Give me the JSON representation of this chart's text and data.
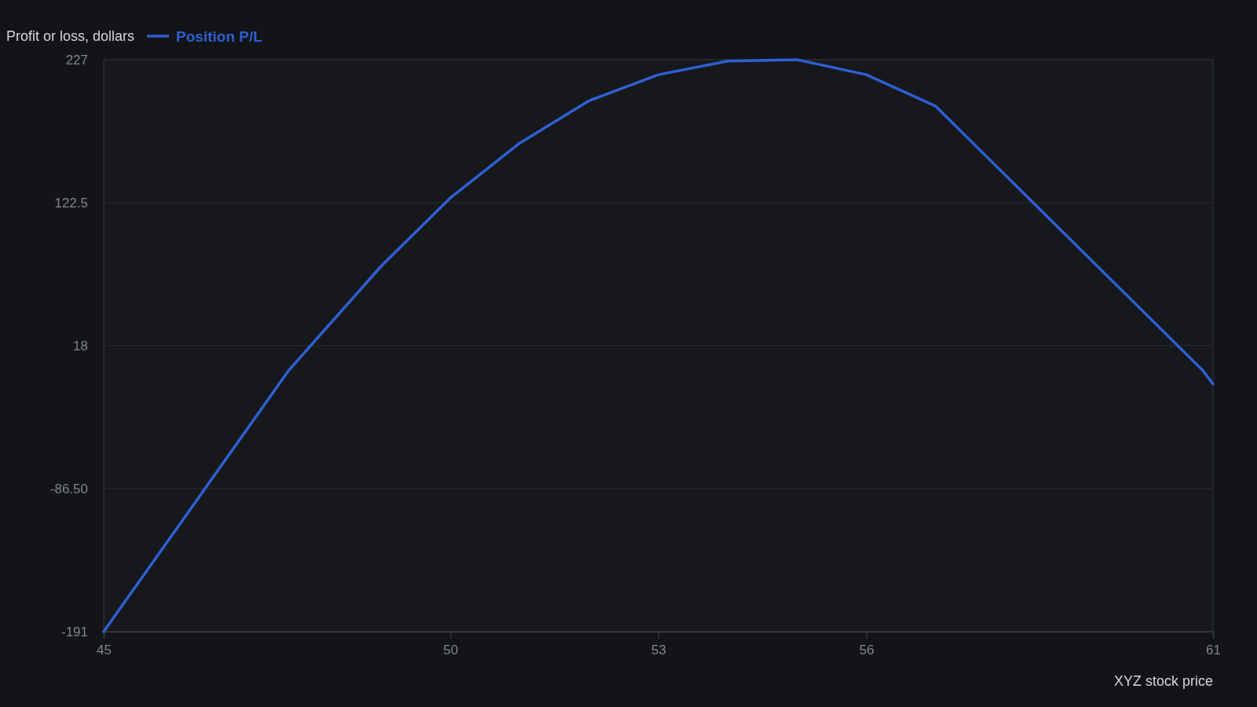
{
  "chart_data": {
    "type": "line",
    "ylabel": "Profit or loss, dollars",
    "xlabel": "XYZ stock price",
    "x": [
      45,
      47.67,
      49,
      50,
      51,
      52,
      53,
      54,
      55,
      56,
      57,
      60.85,
      61
    ],
    "series": [
      {
        "name": "Position P/L",
        "color": "#2f5fd3",
        "values": [
          -191,
          0,
          76,
          126,
          166,
          197,
          216,
          226,
          227,
          216,
          193,
          0,
          -10
        ]
      }
    ],
    "xlim": [
      45,
      61
    ],
    "xticks": [
      45,
      50,
      53,
      56,
      61
    ],
    "ylim": [
      -191,
      227
    ],
    "yticks": [
      -191,
      {
        "value": -86.5,
        "label": "-86.50"
      },
      18,
      122.5,
      227
    ],
    "grid": "y",
    "legend": "top left"
  }
}
